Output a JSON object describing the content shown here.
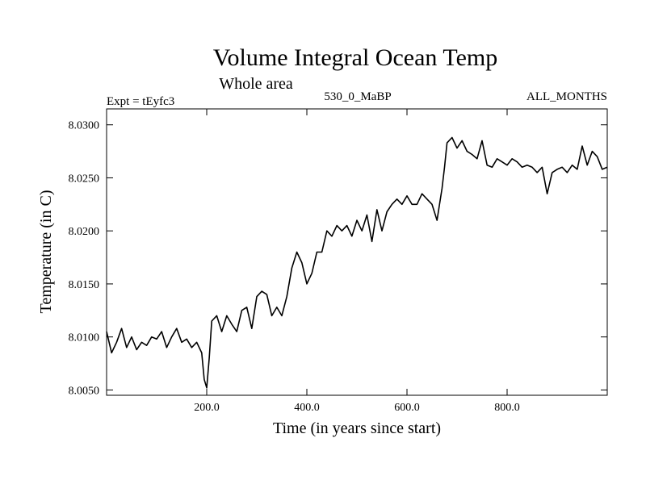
{
  "chart_data": {
    "type": "line",
    "title": "Volume Integral Ocean Temp",
    "subtitle": "Whole area",
    "expt_label": "Expt = tEyfc3",
    "period_label": "530_0_MaBP",
    "months_label": "ALL_MONTHS",
    "xlabel": "Time (in years since start)",
    "ylabel": "Temperature (in C)",
    "xlim": [
      0,
      1000
    ],
    "ylim": [
      8.0045,
      8.0315
    ],
    "x_ticks": [
      {
        "value": 200,
        "label": "200.0"
      },
      {
        "value": 400,
        "label": "400.0"
      },
      {
        "value": 600,
        "label": "600.0"
      },
      {
        "value": 800,
        "label": "800.0"
      }
    ],
    "y_ticks": [
      {
        "value": 8.005,
        "label": "8.0050"
      },
      {
        "value": 8.01,
        "label": "8.0100"
      },
      {
        "value": 8.015,
        "label": "8.0150"
      },
      {
        "value": 8.02,
        "label": "8.0200"
      },
      {
        "value": 8.025,
        "label": "8.0250"
      },
      {
        "value": 8.03,
        "label": "8.0300"
      }
    ],
    "grid": false,
    "series": [
      {
        "name": "Volume Integral Ocean Temp",
        "x": [
          0,
          10,
          20,
          30,
          40,
          50,
          60,
          70,
          80,
          90,
          100,
          110,
          120,
          130,
          140,
          150,
          160,
          170,
          180,
          190,
          195,
          200,
          205,
          210,
          220,
          230,
          240,
          250,
          260,
          270,
          280,
          290,
          300,
          310,
          320,
          330,
          340,
          350,
          360,
          370,
          380,
          390,
          400,
          410,
          420,
          430,
          440,
          450,
          460,
          470,
          480,
          490,
          500,
          510,
          520,
          530,
          540,
          550,
          560,
          570,
          580,
          590,
          600,
          610,
          620,
          630,
          640,
          650,
          660,
          670,
          675,
          680,
          690,
          700,
          710,
          720,
          730,
          740,
          750,
          760,
          770,
          780,
          790,
          800,
          810,
          820,
          830,
          840,
          850,
          860,
          870,
          880,
          890,
          900,
          910,
          920,
          930,
          940,
          950,
          960,
          970,
          980,
          990,
          1000
        ],
        "y": [
          8.0105,
          8.0085,
          8.0095,
          8.0108,
          8.009,
          8.01,
          8.0088,
          8.0095,
          8.0092,
          8.01,
          8.0098,
          8.0105,
          8.009,
          8.01,
          8.0108,
          8.0095,
          8.0098,
          8.009,
          8.0095,
          8.0085,
          8.006,
          8.0052,
          8.008,
          8.0115,
          8.012,
          8.0105,
          8.012,
          8.0112,
          8.0105,
          8.0125,
          8.0128,
          8.0108,
          8.0138,
          8.0143,
          8.014,
          8.012,
          8.0128,
          8.012,
          8.0138,
          8.0165,
          8.018,
          8.017,
          8.015,
          8.016,
          8.018,
          8.018,
          8.02,
          8.0195,
          8.0205,
          8.02,
          8.0205,
          8.0195,
          8.021,
          8.02,
          8.0215,
          8.019,
          8.022,
          8.02,
          8.0218,
          8.0225,
          8.023,
          8.0225,
          8.0233,
          8.0225,
          8.0225,
          8.0235,
          8.023,
          8.0225,
          8.021,
          8.024,
          8.026,
          8.0283,
          8.0288,
          8.0278,
          8.0285,
          8.0275,
          8.0272,
          8.0268,
          8.0285,
          8.0262,
          8.026,
          8.0268,
          8.0265,
          8.0262,
          8.0268,
          8.0265,
          8.026,
          8.0262,
          8.026,
          8.0255,
          8.026,
          8.0235,
          8.0255,
          8.0258,
          8.026,
          8.0255,
          8.0262,
          8.0258,
          8.028,
          8.0262,
          8.0275,
          8.027,
          8.0258,
          8.026
        ]
      }
    ]
  }
}
